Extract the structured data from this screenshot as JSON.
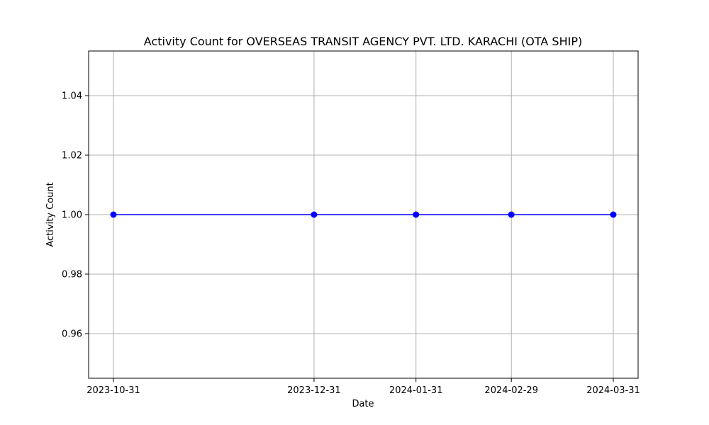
{
  "chart_data": {
    "type": "line",
    "title": "Activity Count for OVERSEAS TRANSIT AGENCY PVT. LTD. KARACHI (OTA SHIP)",
    "xlabel": "Date",
    "ylabel": "Activity Count",
    "x_type": "date",
    "x": [
      "2023-10-31",
      "2023-12-31",
      "2024-01-31",
      "2024-02-29",
      "2024-03-31"
    ],
    "x_ticks": [
      "2023-10-31",
      "2023-12-31",
      "2024-01-31",
      "2024-02-29",
      "2024-03-31"
    ],
    "series": [
      {
        "values": [
          1,
          1,
          1,
          1,
          1
        ],
        "color": "#0000ff",
        "marker": "circle"
      }
    ],
    "ylim": [
      0.945,
      1.055
    ],
    "y_ticks": [
      0.96,
      0.98,
      1.0,
      1.02,
      1.04
    ],
    "y_tick_labels": [
      "0.96",
      "0.98",
      "1.00",
      "1.02",
      "1.04"
    ],
    "grid": true,
    "legend": "none"
  }
}
